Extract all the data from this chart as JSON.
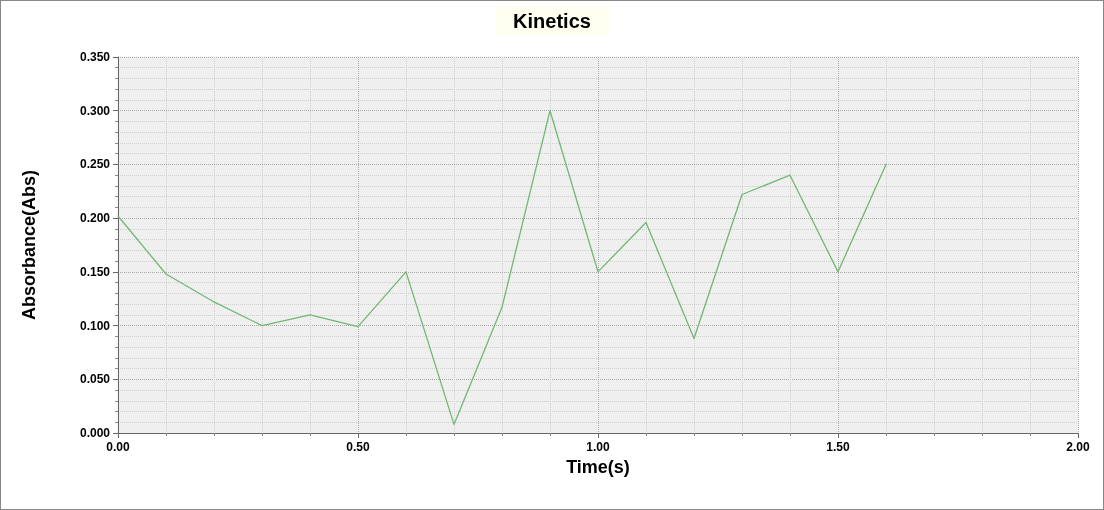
{
  "chart_data": {
    "type": "line",
    "title": "Kinetics",
    "xlabel": "Time(s)",
    "ylabel": "Absorbance(Abs)",
    "x": [
      0,
      0.1,
      0.2,
      0.3,
      0.4,
      0.5,
      0.6,
      0.7,
      0.8,
      0.9,
      1.0,
      1.1,
      1.2,
      1.3,
      1.4,
      1.5,
      1.6
    ],
    "series": [
      {
        "color": "#72b872",
        "values": [
          0.202,
          0.148,
          0.122,
          0.1,
          0.11,
          0.099,
          0.15,
          0.008,
          0.117,
          0.3,
          0.15,
          0.196,
          0.088,
          0.222,
          0.24,
          0.15,
          0.25
        ]
      }
    ],
    "xlim": [
      0,
      2
    ],
    "ylim": [
      0,
      0.35
    ],
    "xticks": [
      {
        "value": 0,
        "label": "0.00"
      },
      {
        "value": 0.5,
        "label": "0.50"
      },
      {
        "value": 1,
        "label": "1.00"
      },
      {
        "value": 1.5,
        "label": "1.50"
      },
      {
        "value": 2,
        "label": "2.00"
      }
    ],
    "yticks": [
      {
        "value": 0,
        "label": "0.000"
      },
      {
        "value": 0.05,
        "label": "0.050"
      },
      {
        "value": 0.1,
        "label": "0.100"
      },
      {
        "value": 0.15,
        "label": "0.150"
      },
      {
        "value": 0.2,
        "label": "0.200"
      },
      {
        "value": 0.25,
        "label": "0.250"
      },
      {
        "value": 0.3,
        "label": "0.300"
      },
      {
        "value": 0.35,
        "label": "0.350"
      }
    ],
    "grid": true,
    "marker": "none",
    "line_style": "solid"
  }
}
